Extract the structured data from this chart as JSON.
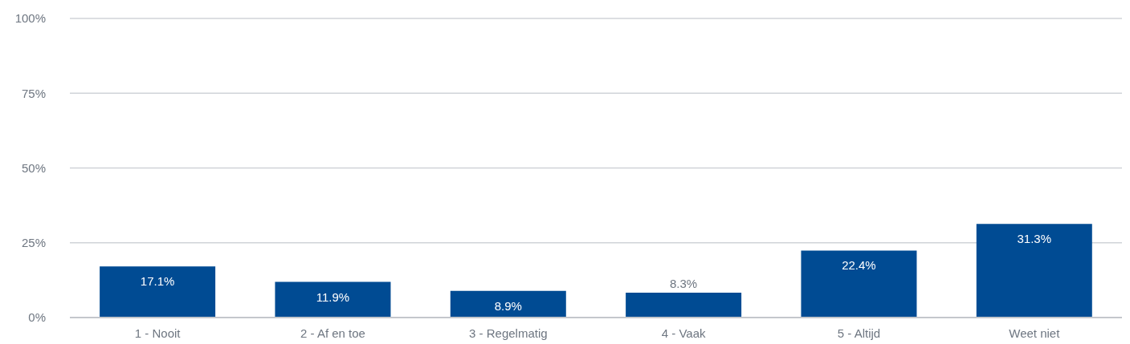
{
  "chart_data": {
    "type": "bar",
    "categories": [
      "1 - Nooit",
      "2 - Af en toe",
      "3 - Regelmatig",
      "4 - Vaak",
      "5 - Altijd",
      "Weet niet"
    ],
    "values": [
      17.1,
      11.9,
      8.9,
      8.3,
      22.4,
      31.3
    ],
    "color": "#004b93",
    "ylim": [
      0,
      100
    ],
    "yticks": [
      {
        "value": 0,
        "label": "0%"
      },
      {
        "value": 25,
        "label": "25%"
      },
      {
        "value": 50,
        "label": "50%"
      },
      {
        "value": 75,
        "label": "75%"
      },
      {
        "value": 100,
        "label": "100%"
      }
    ],
    "value_labels": [
      "17.1%",
      "11.9%",
      "8.9%",
      "8.3%",
      "22.4%",
      "31.3%"
    ],
    "grid": "y"
  }
}
